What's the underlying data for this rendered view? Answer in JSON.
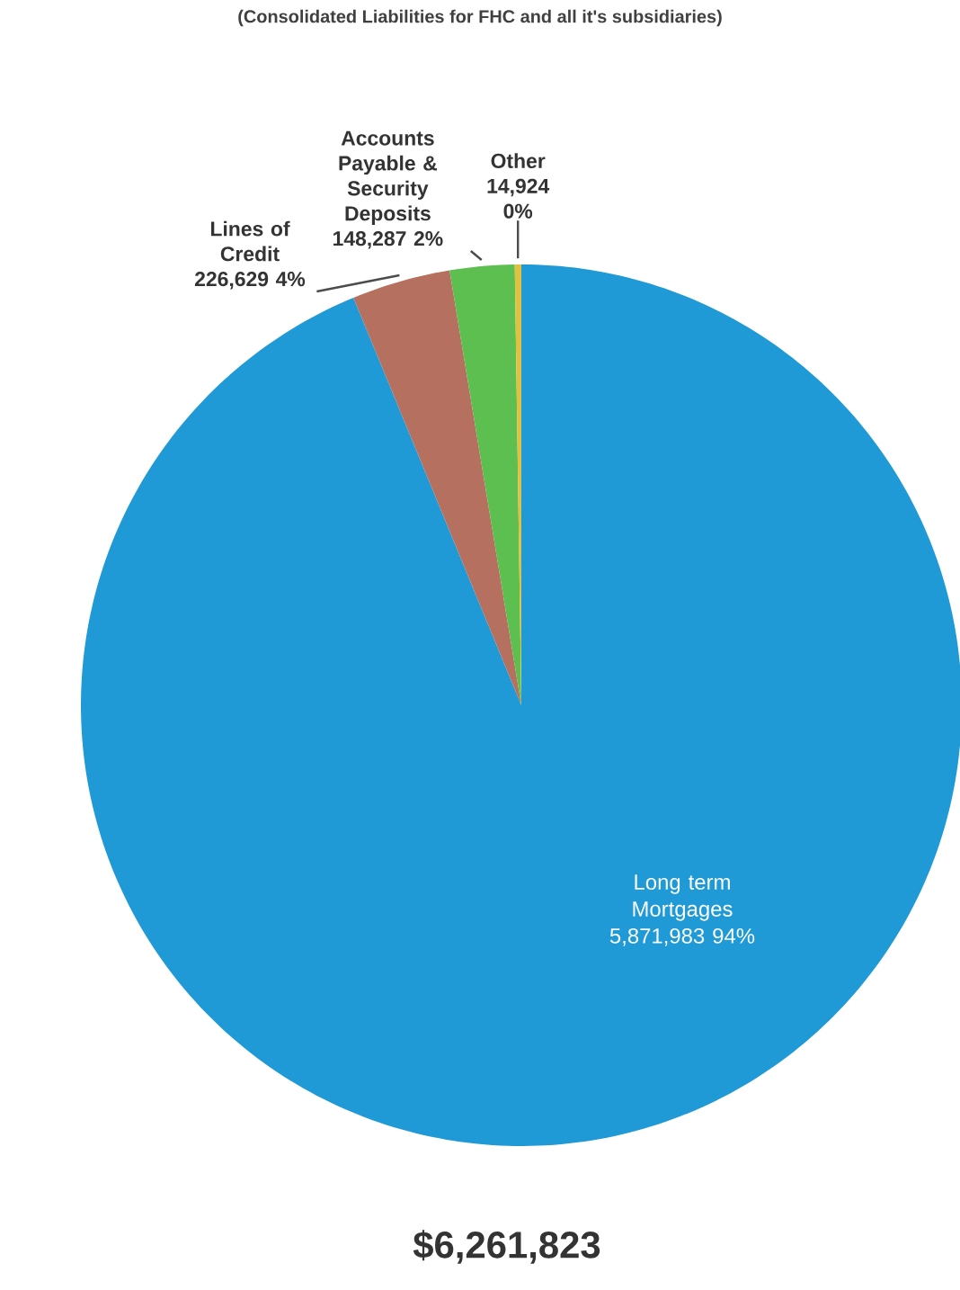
{
  "chart_data": {
    "type": "pie",
    "title": "(Consolidated Liabilities for FHC and all it's subsidiaries)",
    "categories": [
      "Long term Mortgages",
      "Lines of Credit",
      "Accounts Payable & Security Deposits",
      "Other"
    ],
    "values": [
      5871983,
      226629,
      148287,
      14924
    ],
    "value_labels": [
      "5,871,983 94%",
      "226,629 4%",
      "148,287 2%",
      "14,924 0%"
    ],
    "colors": [
      "#1f9ad6",
      "#b5705f",
      "#5cbf4f",
      "#e0c040"
    ],
    "annotations": [
      "$6,261,823"
    ]
  }
}
